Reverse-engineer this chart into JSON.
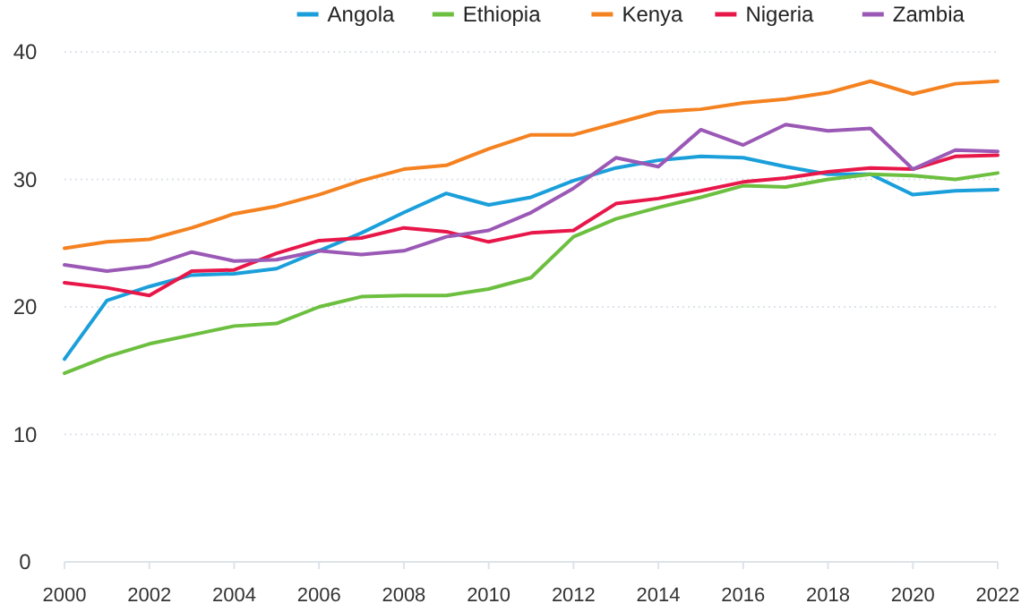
{
  "chart_data": {
    "type": "line",
    "x": [
      2000,
      2001,
      2002,
      2003,
      2004,
      2005,
      2006,
      2007,
      2008,
      2009,
      2010,
      2011,
      2012,
      2013,
      2014,
      2015,
      2016,
      2017,
      2018,
      2019,
      2020,
      2021,
      2022
    ],
    "xlim": [
      2000,
      2022
    ],
    "xticks": [
      2000,
      2002,
      2004,
      2006,
      2008,
      2010,
      2012,
      2014,
      2016,
      2018,
      2020,
      2022
    ],
    "ylim": [
      0,
      40
    ],
    "yticks": [
      0,
      10,
      20,
      30,
      40
    ],
    "grid": "y",
    "legend": "top right",
    "series": [
      {
        "name": "Angola",
        "color": "#1a9fdb",
        "values": [
          15.9,
          20.5,
          21.6,
          22.5,
          22.6,
          23.0,
          24.4,
          25.8,
          27.4,
          28.9,
          28.0,
          28.6,
          29.9,
          30.9,
          31.5,
          31.8,
          31.7,
          31.0,
          30.4,
          30.4,
          28.8,
          29.1,
          29.2
        ]
      },
      {
        "name": "Ethiopia",
        "color": "#6cbf3f",
        "values": [
          14.8,
          16.1,
          17.1,
          17.8,
          18.5,
          18.7,
          20.0,
          20.8,
          20.9,
          20.9,
          21.4,
          22.3,
          25.5,
          26.9,
          27.8,
          28.6,
          29.5,
          29.4,
          30.0,
          30.4,
          30.3,
          30.0,
          30.5
        ]
      },
      {
        "name": "Kenya",
        "color": "#f58220",
        "values": [
          24.6,
          25.1,
          25.3,
          26.2,
          27.3,
          27.9,
          28.8,
          29.9,
          30.8,
          31.1,
          32.4,
          33.5,
          33.5,
          34.4,
          35.3,
          35.5,
          36.0,
          36.3,
          36.8,
          37.7,
          36.7,
          37.5,
          37.7
        ]
      },
      {
        "name": "Nigeria",
        "color": "#e8174a",
        "values": [
          21.9,
          21.5,
          20.9,
          22.8,
          22.9,
          24.2,
          25.2,
          25.4,
          26.2,
          25.9,
          25.1,
          25.8,
          26.0,
          28.1,
          28.5,
          29.1,
          29.8,
          30.1,
          30.6,
          30.9,
          30.8,
          31.8,
          31.9
        ]
      },
      {
        "name": "Zambia",
        "color": "#9b59b6",
        "values": [
          23.3,
          22.8,
          23.2,
          24.3,
          23.6,
          23.7,
          24.4,
          24.1,
          24.4,
          25.5,
          26.0,
          27.4,
          29.3,
          31.7,
          31.0,
          33.9,
          32.7,
          34.3,
          33.8,
          34.0,
          30.8,
          32.3,
          32.2
        ]
      }
    ]
  }
}
